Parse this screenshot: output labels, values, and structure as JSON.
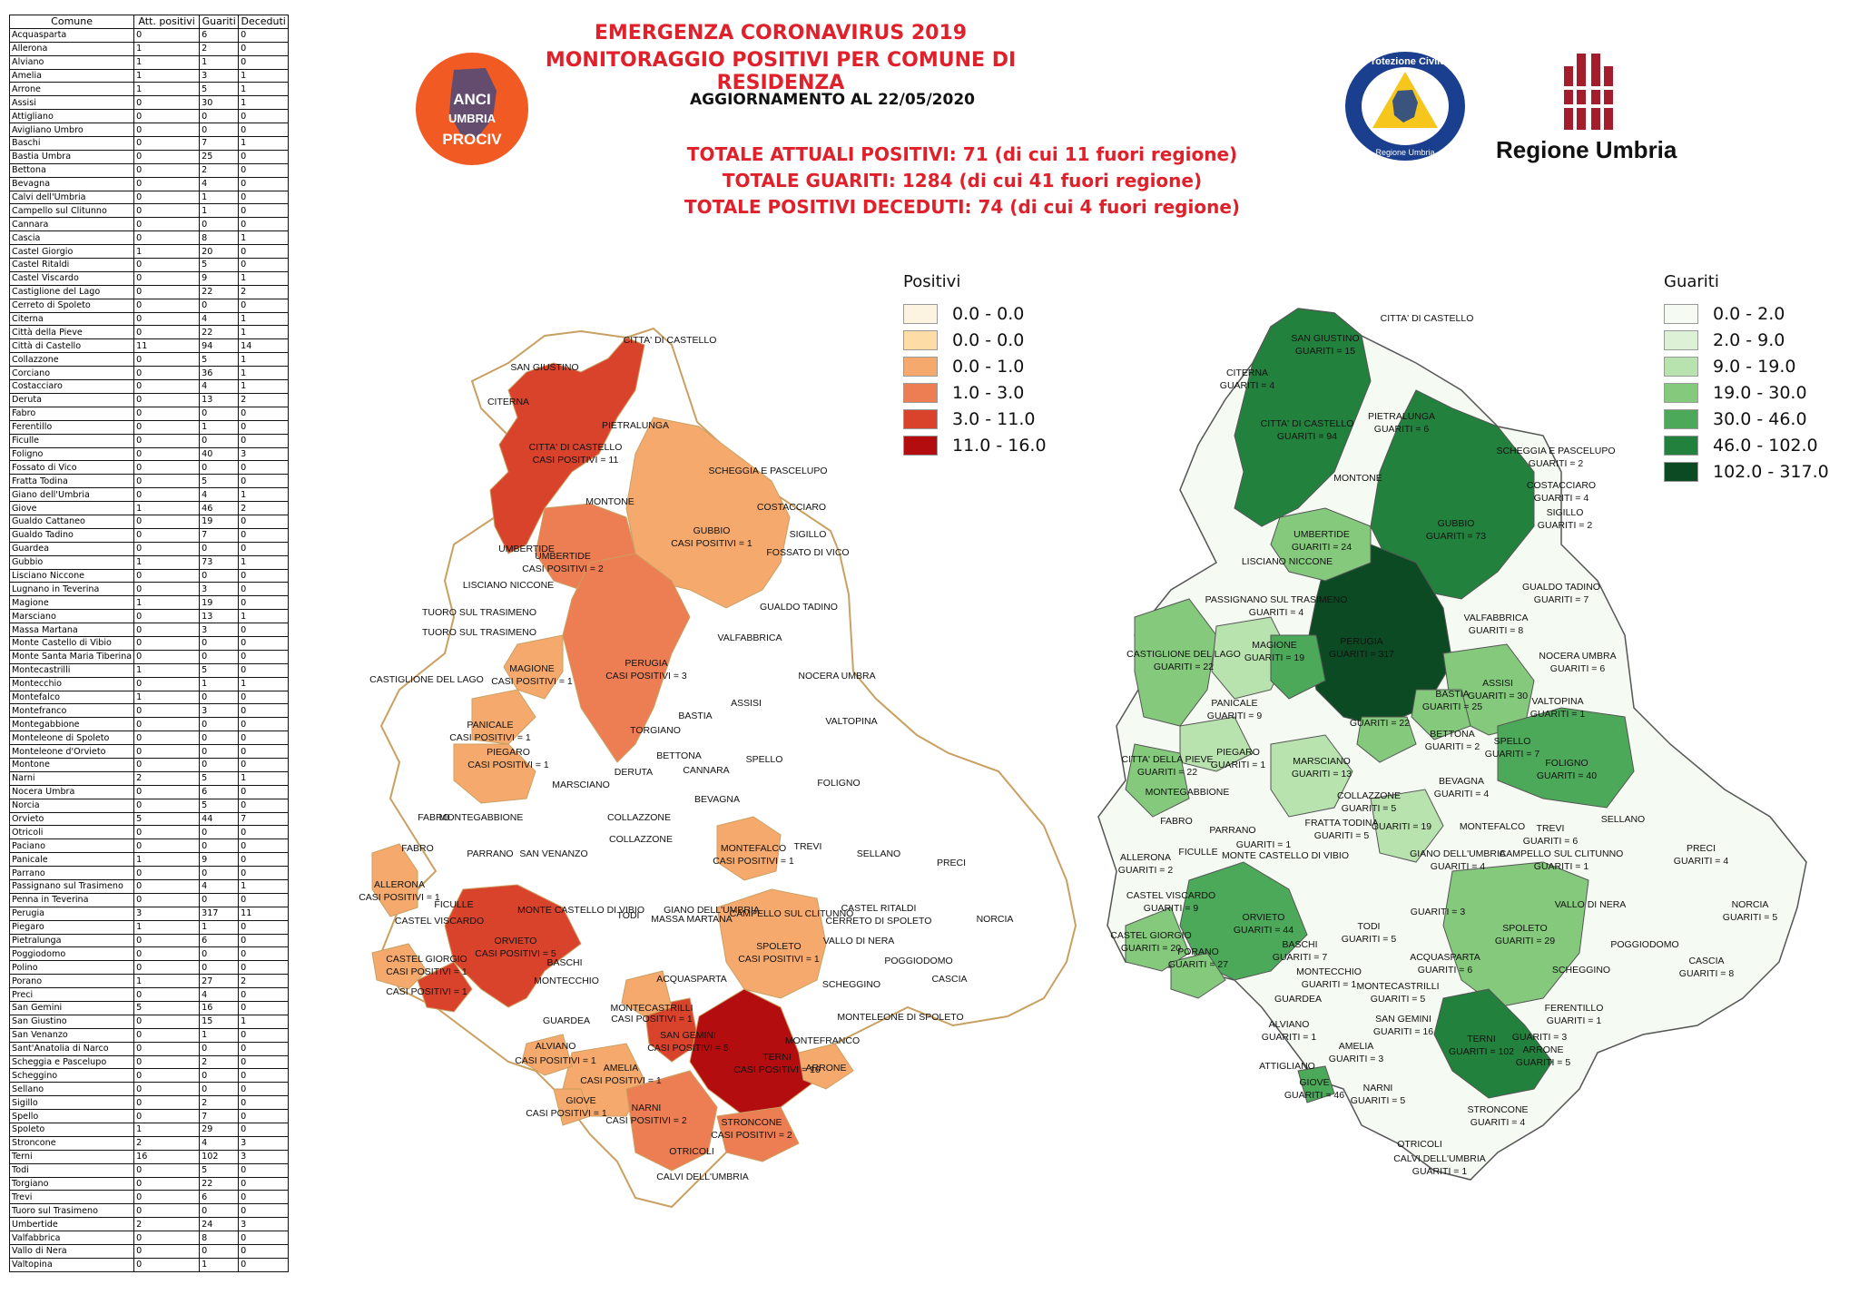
{
  "table": {
    "headers": [
      "Comune",
      "Att. positivi",
      "Guariti",
      "Deceduti"
    ],
    "rows": [
      [
        "Acquasparta",
        "0",
        "6",
        "0"
      ],
      [
        "Allerona",
        "1",
        "2",
        "0"
      ],
      [
        "Alviano",
        "1",
        "1",
        "0"
      ],
      [
        "Amelia",
        "1",
        "3",
        "1"
      ],
      [
        "Arrone",
        "1",
        "5",
        "1"
      ],
      [
        "Assisi",
        "0",
        "30",
        "1"
      ],
      [
        "Attigliano",
        "0",
        "0",
        "0"
      ],
      [
        "Avigliano Umbro",
        "0",
        "0",
        "0"
      ],
      [
        "Baschi",
        "0",
        "7",
        "1"
      ],
      [
        "Bastia Umbra",
        "0",
        "25",
        "0"
      ],
      [
        "Bettona",
        "0",
        "2",
        "0"
      ],
      [
        "Bevagna",
        "0",
        "4",
        "0"
      ],
      [
        "Calvi dell'Umbria",
        "0",
        "1",
        "0"
      ],
      [
        "Campello sul Clitunno",
        "0",
        "1",
        "0"
      ],
      [
        "Cannara",
        "0",
        "0",
        "0"
      ],
      [
        "Cascia",
        "0",
        "8",
        "1"
      ],
      [
        "Castel Giorgio",
        "1",
        "20",
        "0"
      ],
      [
        "Castel Ritaldi",
        "0",
        "5",
        "0"
      ],
      [
        "Castel Viscardo",
        "0",
        "9",
        "1"
      ],
      [
        "Castiglione del Lago",
        "0",
        "22",
        "2"
      ],
      [
        "Cerreto di Spoleto",
        "0",
        "0",
        "0"
      ],
      [
        "Citerna",
        "0",
        "4",
        "1"
      ],
      [
        "Città  della Pieve",
        "0",
        "22",
        "1"
      ],
      [
        "Città  di Castello",
        "11",
        "94",
        "14"
      ],
      [
        "Collazzone",
        "0",
        "5",
        "1"
      ],
      [
        "Corciano",
        "0",
        "36",
        "1"
      ],
      [
        "Costacciaro",
        "0",
        "4",
        "1"
      ],
      [
        "Deruta",
        "0",
        "13",
        "2"
      ],
      [
        "Fabro",
        "0",
        "0",
        "0"
      ],
      [
        "Ferentillo",
        "0",
        "1",
        "0"
      ],
      [
        "Ficulle",
        "0",
        "0",
        "0"
      ],
      [
        "Foligno",
        "0",
        "40",
        "3"
      ],
      [
        "Fossato di Vico",
        "0",
        "0",
        "0"
      ],
      [
        "Fratta Todina",
        "0",
        "5",
        "0"
      ],
      [
        "Giano dell'Umbria",
        "0",
        "4",
        "1"
      ],
      [
        "Giove",
        "1",
        "46",
        "2"
      ],
      [
        "Gualdo Cattaneo",
        "0",
        "19",
        "0"
      ],
      [
        "Gualdo Tadino",
        "0",
        "7",
        "0"
      ],
      [
        "Guardea",
        "0",
        "0",
        "0"
      ],
      [
        "Gubbio",
        "1",
        "73",
        "1"
      ],
      [
        "Lisciano Niccone",
        "0",
        "0",
        "0"
      ],
      [
        "Lugnano in Teverina",
        "0",
        "3",
        "0"
      ],
      [
        "Magione",
        "1",
        "19",
        "0"
      ],
      [
        "Marsciano",
        "0",
        "13",
        "1"
      ],
      [
        "Massa Martana",
        "0",
        "3",
        "0"
      ],
      [
        "Monte Castello di Vibio",
        "0",
        "0",
        "0"
      ],
      [
        "Monte Santa Maria Tiberina",
        "0",
        "0",
        "0"
      ],
      [
        "Montecastrilli",
        "1",
        "5",
        "0"
      ],
      [
        "Montecchio",
        "0",
        "1",
        "1"
      ],
      [
        "Montefalco",
        "1",
        "0",
        "0"
      ],
      [
        "Montefranco",
        "0",
        "3",
        "0"
      ],
      [
        "Montegabbione",
        "0",
        "0",
        "0"
      ],
      [
        "Monteleone di Spoleto",
        "0",
        "0",
        "0"
      ],
      [
        "Monteleone d'Orvieto",
        "0",
        "0",
        "0"
      ],
      [
        "Montone",
        "0",
        "0",
        "0"
      ],
      [
        "Narni",
        "2",
        "5",
        "1"
      ],
      [
        "Nocera Umbra",
        "0",
        "6",
        "0"
      ],
      [
        "Norcia",
        "0",
        "5",
        "0"
      ],
      [
        "Orvieto",
        "5",
        "44",
        "7"
      ],
      [
        "Otricoli",
        "0",
        "0",
        "0"
      ],
      [
        "Paciano",
        "0",
        "0",
        "0"
      ],
      [
        "Panicale",
        "1",
        "9",
        "0"
      ],
      [
        "Parrano",
        "0",
        "0",
        "0"
      ],
      [
        "Passignano sul Trasimeno",
        "0",
        "4",
        "1"
      ],
      [
        "Penna in Teverina",
        "0",
        "0",
        "0"
      ],
      [
        "Perugia",
        "3",
        "317",
        "11"
      ],
      [
        "Piegaro",
        "1",
        "1",
        "0"
      ],
      [
        "Pietralunga",
        "0",
        "6",
        "0"
      ],
      [
        "Poggiodomo",
        "0",
        "0",
        "0"
      ],
      [
        "Polino",
        "0",
        "0",
        "0"
      ],
      [
        "Porano",
        "1",
        "27",
        "2"
      ],
      [
        "Preci",
        "0",
        "4",
        "0"
      ],
      [
        "San Gemini",
        "5",
        "16",
        "0"
      ],
      [
        "San Giustino",
        "0",
        "15",
        "1"
      ],
      [
        "San Venanzo",
        "0",
        "1",
        "0"
      ],
      [
        "Sant'Anatolia di Narco",
        "0",
        "0",
        "0"
      ],
      [
        "Scheggia e Pascelupo",
        "0",
        "2",
        "0"
      ],
      [
        "Scheggino",
        "0",
        "0",
        "0"
      ],
      [
        "Sellano",
        "0",
        "0",
        "0"
      ],
      [
        "Sigillo",
        "0",
        "2",
        "0"
      ],
      [
        "Spello",
        "0",
        "7",
        "0"
      ],
      [
        "Spoleto",
        "1",
        "29",
        "0"
      ],
      [
        "Stroncone",
        "2",
        "4",
        "3"
      ],
      [
        "Terni",
        "16",
        "102",
        "3"
      ],
      [
        "Todi",
        "0",
        "5",
        "0"
      ],
      [
        "Torgiano",
        "0",
        "22",
        "0"
      ],
      [
        "Trevi",
        "0",
        "6",
        "0"
      ],
      [
        "Tuoro sul Trasimeno",
        "0",
        "0",
        "0"
      ],
      [
        "Umbertide",
        "2",
        "24",
        "3"
      ],
      [
        "Valfabbrica",
        "0",
        "8",
        "0"
      ],
      [
        "Vallo di Nera",
        "0",
        "0",
        "0"
      ],
      [
        "Valtopina",
        "0",
        "1",
        "0"
      ]
    ]
  },
  "header": {
    "title1": "EMERGENZA CORONAVIRUS 2019",
    "title2": "MONITORAGGIO POSITIVI PER COMUNE DI RESIDENZA",
    "update": "AGGIORNAMENTO AL 22/05/2020",
    "total1": "TOTALE ATTUALI POSITIVI: 71 (di cui 11 fuori regione)",
    "total2": "TOTALE GUARITI: 1284 (di cui 41 fuori regione)",
    "total3": "TOTALE POSITIVI DECEDUTI: 74 (di cui 4 fuori regione)"
  },
  "logos": {
    "anci": [
      "ANCI",
      "UMBRIA",
      "PROCIV"
    ],
    "protezione": [
      "Protezione Civile",
      "Regione Umbria"
    ],
    "regione": "Regione Umbria"
  },
  "legend_positivi": {
    "title": "Positivi",
    "classes": [
      {
        "label": "0.0 - 0.0",
        "color": "#fdf3e1"
      },
      {
        "label": "0.0 - 0.0",
        "color": "#fddca6"
      },
      {
        "label": "0.0 - 1.0",
        "color": "#f6a96c"
      },
      {
        "label": "1.0 - 3.0",
        "color": "#ed7d52"
      },
      {
        "label": "3.0 - 11.0",
        "color": "#d9432c"
      },
      {
        "label": "11.0 - 16.0",
        "color": "#b30d0f"
      }
    ]
  },
  "legend_guariti": {
    "title": "Guariti",
    "classes": [
      {
        "label": "0.0 - 2.0",
        "color": "#f5fbf3"
      },
      {
        "label": "2.0 - 9.0",
        "color": "#dcf1d6"
      },
      {
        "label": "9.0 - 19.0",
        "color": "#b8e2ae"
      },
      {
        "label": "19.0 - 30.0",
        "color": "#84c97c"
      },
      {
        "label": "30.0 - 46.0",
        "color": "#4da95a"
      },
      {
        "label": "46.0 - 102.0",
        "color": "#23813e"
      },
      {
        "label": "102.0 - 317.0",
        "color": "#0b4a23"
      }
    ]
  },
  "map_positivi_labels": [
    "CITTA' DI CASTELLO",
    "SAN GIUSTINO",
    "CITERNA",
    "PIETRALUNGA",
    "CITTA' DI CASTELLO",
    "CASI POSITIVI = 11",
    "MONTONE",
    "SCHEGGIA E PASCELUPO",
    "COSTACCIARO",
    "GUBBIO",
    "CASI POSITIVI = 1",
    "SIGILLO",
    "FOSSATO DI VICO",
    "UMBERTIDE",
    "UMBERTIDE",
    "CASI POSITIVI = 2",
    "LISCIANO NICCONE",
    "GUALDO TADINO",
    "TUORO SUL TRASIMENO",
    "TUORO SUL TRASIMENO",
    "VALFABBRICA",
    "PERUGIA",
    "CASI POSITIVI = 3",
    "MAGIONE",
    "CASI POSITIVI = 1",
    "CASTIGLIONE DEL LAGO",
    "NOCERA UMBRA",
    "ASSISI",
    "BASTIA",
    "VALTOPINA",
    "TORGIANO",
    "PANICALE",
    "CASI POSITIVI = 1",
    "BETTONA",
    "SPELLO",
    "CANNARA",
    "PIEGARO",
    "CASI POSITIVI = 1",
    "MARSCIANO",
    "DERUTA",
    "FOLIGNO",
    "BEVAGNA",
    "FABRO",
    "MONTEGABBIONE",
    "COLLAZZONE",
    "MONTEFALCO",
    "CASI POSITIVI = 1",
    "SELLANO",
    "FABRO",
    "PARRANO",
    "SAN VENANZO",
    "COLLAZZONE",
    "TREVI",
    "PRECI",
    "ALLERONA",
    "CASI POSITIVI = 1",
    "FICULLE",
    "MONTE CASTELLO DI VIBIO",
    "GIANO DELL'UMBRIA",
    "CAMPELLO SUL CLITUNNO",
    "CASTEL RITALDI",
    "CERRETO DI SPOLETO",
    "ORVIETO",
    "CASI POSITIVI = 5",
    "TODI",
    "MASSA MARTANA",
    "NORCIA",
    "CASTEL VISCARDO",
    "VALLO DI NERA",
    "CASTEL GIORGIO",
    "CASI POSITIVI = 1",
    "SPOLETO",
    "CASI POSITIVI = 1",
    "POGGIODOMO",
    "CASI POSITIVI = 1",
    "BASCHI",
    "ACQUASPARTA",
    "CASCIA",
    "MONTECCHIO",
    "SCHEGGINO",
    "MONTECASTRILLI",
    "CASI POSITIVI = 1",
    "MONTELEONE DI SPOLETO",
    "GUARDEA",
    "SAN GEMINI",
    "CASI POSITIVI = 5",
    "MONTEFRANCO",
    "ALVIANO",
    "TERNI",
    "CASI POSITIVI = 16",
    "ARRONE",
    "CASI POSITIVI = 1",
    "AMELIA",
    "CASI POSITIVI = 1",
    "GIOVE",
    "CASI POSITIVI = 1",
    "NARNI",
    "CASI POSITIVI = 2",
    "STRONCONE",
    "CASI POSITIVI = 2",
    "OTRICOLI",
    "CALVI DELL'UMBRIA"
  ],
  "map_guariti_labels": [
    "CITTA' DI CASTELLO",
    "SAN GIUSTINO",
    "GUARITI = 15",
    "CITERNA",
    "GUARITI = 4",
    "CITTA' DI CASTELLO",
    "GUARITI = 94",
    "PIETRALUNGA",
    "GUARITI = 6",
    "SCHEGGIA E PASCELUPO",
    "GUARITI = 2",
    "MONTONE",
    "COSTACCIARO",
    "GUARITI = 4",
    "SIGILLO",
    "GUARITI = 2",
    "GUBBIO",
    "GUARITI = 73",
    "UMBERTIDE",
    "GUARITI = 24",
    "LISCIANO NICCONE",
    "GUALDO TADINO",
    "GUARITI = 7",
    "PASSIGNANO SUL TRASIMENO",
    "GUARITI = 4",
    "VALFABBRICA",
    "GUARITI = 8",
    "PERUGIA",
    "GUARITI = 317",
    "MAGIONE",
    "GUARITI = 19",
    "CASTIGLIONE DEL LAGO",
    "GUARITI = 22",
    "NOCERA UMBRA",
    "GUARITI = 6",
    "ASSISI",
    "GUARITI = 30",
    "BASTIA",
    "GUARITI = 25",
    "VALTOPINA",
    "GUARITI = 1",
    "PANICALE",
    "GUARITI = 9",
    "GUARITI = 22",
    "BETTONA",
    "GUARITI = 2",
    "SPELLO",
    "GUARITI = 7",
    "PIEGARO",
    "GUARITI = 1",
    "FOLIGNO",
    "GUARITI = 40",
    "CITTA' DELLA PIEVE",
    "GUARITI = 22",
    "MARSCIANO",
    "GUARITI = 13",
    "BEVAGNA",
    "GUARITI = 4",
    "MONTEGABBIONE",
    "COLLAZZONE",
    "GUARITI = 5",
    "FABRO",
    "FRATTA TODINA",
    "GUARITI = 5",
    "GUARITI = 19",
    "MONTEFALCO",
    "SELLANO",
    "PARRANO",
    "TREVI",
    "GUARITI = 6",
    "PRECI",
    "GUARITI = 4",
    "ALLERONA",
    "GUARITI = 2",
    "FICULLE",
    "GUARITI = 1",
    "MONTE CASTELLO DI VIBIO",
    "GIANO DELL'UMBRIA",
    "GUARITI = 4",
    "CAMPELLO SUL CLITUNNO",
    "GUARITI = 1",
    "CASTEL VISCARDO",
    "GUARITI = 9",
    "ORVIETO",
    "GUARITI = 44",
    "TODI",
    "GUARITI = 5",
    "GUARITI = 3",
    "VALLO DI NERA",
    "NORCIA",
    "GUARITI = 5",
    "CASTEL GIORGIO",
    "GUARITI = 20",
    "PORANO",
    "GUARITI = 27",
    "BASCHI",
    "GUARITI = 7",
    "SPOLETO",
    "GUARITI = 29",
    "POGGIODOMO",
    "CASCIA",
    "GUARITI = 8",
    "MONTECCHIO",
    "GUARITI = 1",
    "ACQUASPARTA",
    "GUARITI = 6",
    "SCHEGGINO",
    "MONTECASTRILLI",
    "GUARITI = 5",
    "GUARDEA",
    "FERENTILLO",
    "GUARITI = 1",
    "SAN GEMINI",
    "GUARITI = 16",
    "ALVIANO",
    "GUARITI = 1",
    "TERNI",
    "GUARITI = 102",
    "GUARITI = 3",
    "ARRONE",
    "GUARITI = 5",
    "AMELIA",
    "GUARITI = 3",
    "ATTIGLIANO",
    "GIOVE",
    "GUARITI = 46",
    "NARNI",
    "GUARITI = 5",
    "STRONCONE",
    "GUARITI = 4",
    "OTRICOLI",
    "CALVI DELL'UMBRIA",
    "GUARITI = 1"
  ]
}
